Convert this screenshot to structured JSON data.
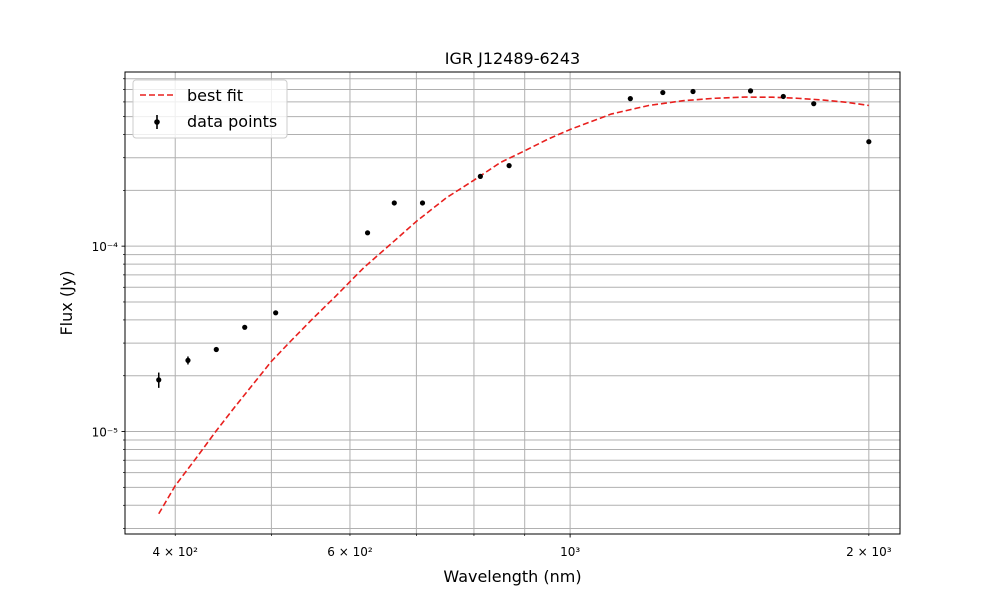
{
  "chart_data": {
    "type": "line",
    "title": "IGR J12489-6243",
    "xlabel": "Wavelength (nm)",
    "ylabel": "Flux (Jy)",
    "x_scale": "log",
    "y_scale": "log",
    "xlim": [
      356,
      2150
    ],
    "ylim": [
      2.8e-06,
      0.00087
    ],
    "grid": true,
    "grid_minor": true,
    "legend_position": "top-left",
    "x_tick_labels": [
      {
        "value": 400,
        "label": "4 × 10²"
      },
      {
        "value": 600,
        "label": "6 × 10²"
      },
      {
        "value": 1000,
        "label": "10³"
      },
      {
        "value": 2000,
        "label": "2 × 10³"
      }
    ],
    "y_tick_labels": [
      {
        "value": 1e-05,
        "label": "10⁻⁵"
      },
      {
        "value": 0.0001,
        "label": "10⁻⁴"
      }
    ],
    "series": [
      {
        "name": "best fit",
        "style": "dashed-line",
        "color": "#e8201e",
        "x": [
          385,
          400,
          420,
          440,
          460,
          480,
          500,
          520,
          550,
          580,
          620,
          660,
          700,
          750,
          800,
          850,
          900,
          950,
          1000,
          1100,
          1200,
          1300,
          1400,
          1500,
          1600,
          1700,
          1800,
          1900,
          2000
        ],
        "y": [
          3.6e-06,
          5.1e-06,
          7.2e-06,
          1.01e-05,
          1.37e-05,
          1.82e-05,
          2.39e-05,
          2.98e-05,
          4.05e-05,
          5.35e-05,
          7.68e-05,
          0.000103,
          0.000136,
          0.000182,
          0.000227,
          0.000282,
          0.000327,
          0.000378,
          0.000426,
          0.000516,
          0.000574,
          0.000609,
          0.000628,
          0.000637,
          0.000636,
          0.000627,
          0.000614,
          0.000597,
          0.000574
        ]
      },
      {
        "name": "data points",
        "style": "errorbar-markers",
        "color": "#000000",
        "x": [
          385,
          412,
          440,
          470,
          505,
          625,
          665,
          710,
          812,
          868,
          1150,
          1240,
          1330,
          1520,
          1640,
          1760,
          2000
        ],
        "y": [
          1.9e-05,
          2.42e-05,
          2.77e-05,
          3.65e-05,
          4.37e-05,
          0.000118,
          0.000171,
          0.000171,
          0.000238,
          0.000272,
          0.000625,
          0.000674,
          0.000683,
          0.000688,
          0.000642,
          0.000587,
          0.000366
        ],
        "yerr": [
          1.8e-06,
          1.2e-06,
          8e-07,
          9e-07,
          1e-06,
          2e-06,
          3e-06,
          3e-06,
          4e-06,
          4e-06,
          1e-05,
          1e-05,
          1e-05,
          1e-05,
          1e-05,
          1e-05,
          8e-06
        ]
      }
    ]
  }
}
